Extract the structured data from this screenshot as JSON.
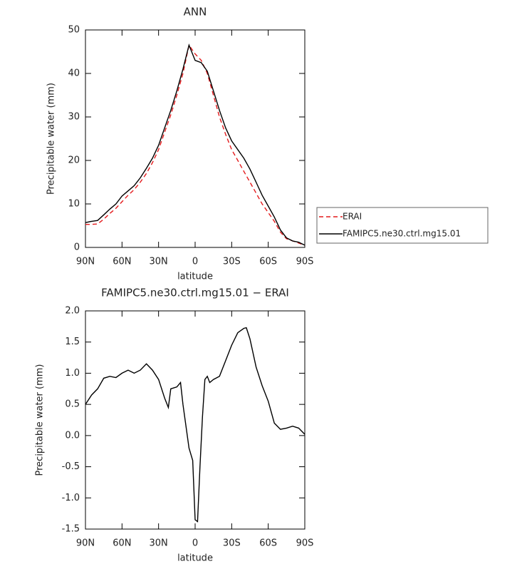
{
  "chart_data": [
    {
      "type": "line",
      "title": "ANN",
      "xlabel": "latitude",
      "ylabel": "Precipitable water (mm)",
      "x": [
        90,
        85,
        80,
        75,
        70,
        65,
        60,
        55,
        50,
        45,
        40,
        35,
        30,
        25,
        20,
        15,
        10,
        5,
        0,
        -5,
        -10,
        -15,
        -20,
        -25,
        -30,
        -35,
        -40,
        -45,
        -50,
        -55,
        -60,
        -65,
        -70,
        -75,
        -80,
        -85,
        -90
      ],
      "series": [
        {
          "name": "ERAI",
          "color": "#e41a1c",
          "style": "dashed",
          "values": [
            5.3,
            5.3,
            5.4,
            6.5,
            7.8,
            9.0,
            10.5,
            12.0,
            13.3,
            15.0,
            17.0,
            19.5,
            22.5,
            26.5,
            30.5,
            35,
            40,
            46.5,
            44.5,
            43,
            40,
            35,
            30,
            26,
            22.5,
            20,
            17.5,
            15,
            12.5,
            10,
            8,
            6,
            3.5,
            2,
            1.5,
            1,
            0.5
          ]
        },
        {
          "name": "FAMIPC5.ne30.ctrl.mg15.01",
          "color": "#000000",
          "style": "solid",
          "values": [
            5.7,
            6.0,
            6.2,
            7.5,
            8.8,
            10,
            11.8,
            13,
            14.2,
            16,
            18.2,
            20.5,
            23.5,
            27.5,
            31.5,
            36,
            41,
            46.5,
            43,
            42.5,
            40.5,
            36,
            31.5,
            27.5,
            24.5,
            22.5,
            20.5,
            18,
            15,
            12,
            9.5,
            7,
            4,
            2.2,
            1.5,
            1.2,
            0.5
          ]
        }
      ],
      "xlim": [
        90,
        -90
      ],
      "xticks": [
        {
          "value": 90,
          "label": "90N"
        },
        {
          "value": 60,
          "label": "60N"
        },
        {
          "value": 30,
          "label": "30N"
        },
        0,
        {
          "value": -30,
          "label": "30S"
        },
        {
          "value": -60,
          "label": "60S"
        },
        {
          "value": -90,
          "label": "90S"
        }
      ],
      "ylim": [
        0,
        50
      ],
      "yticks": [
        0,
        10,
        20,
        30,
        40,
        50
      ],
      "legend": "right"
    },
    {
      "type": "line",
      "title": "FAMIPC5.ne30.ctrl.mg15.01  −  ERAI",
      "xlabel": "latitude",
      "ylabel": "Precipitable water (mm)",
      "x": [
        90,
        85,
        80,
        75,
        70,
        65,
        60,
        55,
        50,
        45,
        40,
        35,
        30,
        25,
        22,
        20,
        15,
        12,
        10,
        5,
        2,
        0,
        -2,
        -4,
        -6,
        -8,
        -10,
        -12,
        -15,
        -20,
        -25,
        -30,
        -35,
        -40,
        -42,
        -45,
        -50,
        -55,
        -60,
        -65,
        -70,
        -75,
        -80,
        -85,
        -90
      ],
      "values": [
        0.5,
        0.65,
        0.75,
        0.92,
        0.95,
        0.93,
        1.0,
        1.05,
        1.0,
        1.05,
        1.15,
        1.05,
        0.9,
        0.6,
        0.45,
        0.75,
        0.78,
        0.85,
        0.5,
        -0.2,
        -0.4,
        -1.35,
        -1.38,
        -0.5,
        0.3,
        0.9,
        0.95,
        0.85,
        0.9,
        0.95,
        1.2,
        1.45,
        1.65,
        1.72,
        1.73,
        1.55,
        1.1,
        0.8,
        0.55,
        0.2,
        0.1,
        0.12,
        0.15,
        0.12,
        0.02
      ],
      "color": "#000000",
      "xlim": [
        90,
        -90
      ],
      "xticks": [
        {
          "value": 90,
          "label": "90N"
        },
        {
          "value": 60,
          "label": "60N"
        },
        {
          "value": 30,
          "label": "30N"
        },
        0,
        {
          "value": -30,
          "label": "30S"
        },
        {
          "value": -60,
          "label": "60S"
        },
        {
          "value": -90,
          "label": "90S"
        }
      ],
      "ylim": [
        -1.5,
        2
      ],
      "yticks": [
        {
          "value": 2,
          "label": "2.0"
        },
        1.5,
        {
          "value": 1,
          "label": "1.0"
        },
        0.5,
        {
          "value": 0,
          "label": "0.0"
        },
        -0.5,
        {
          "value": -1,
          "label": "-1.0"
        },
        -1.5
      ]
    }
  ]
}
